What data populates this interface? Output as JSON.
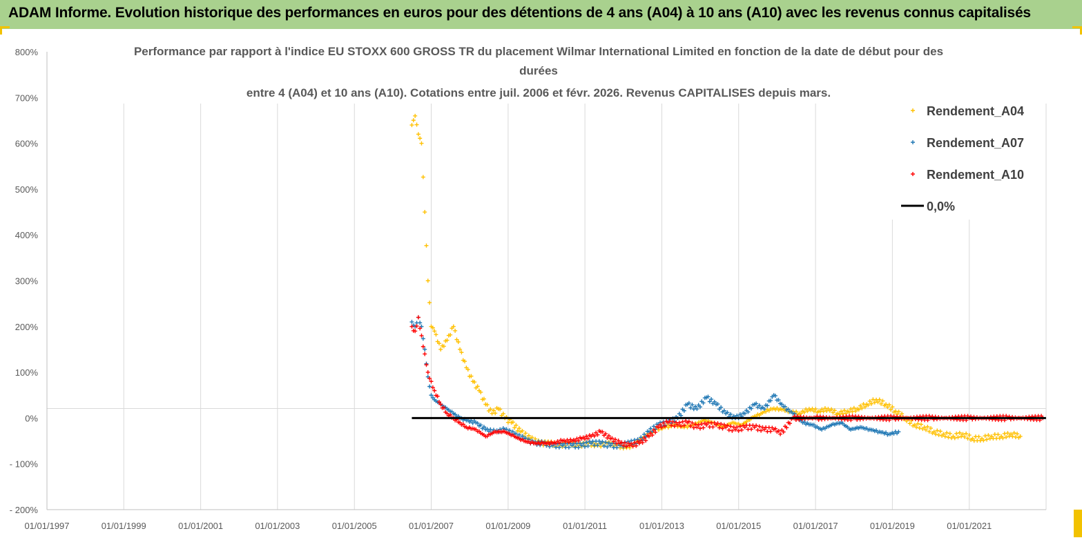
{
  "header": {
    "title": "ADAM Informe. Evolution historique des performances en euros pour des détentions de 4 ans (A04) à 10 ans (A10) avec les revenus connus capitalisés"
  },
  "colors": {
    "banner_bg": "#a9d18e",
    "corner_accent": "#f2c200",
    "series_A04": "#ffc000",
    "series_A07": "#1f77b4",
    "series_A10": "#ff0000",
    "zero_line": "#000000",
    "grid": "#d9d9d9"
  },
  "chart_data": {
    "type": "scatter",
    "title_lines": [
      "Performance par rapport à l'indice EU STOXX 600 GROSS TR  du placement Wilmar International Limited en fonction de la date de début pour des",
      "durées",
      "entre 4 (A04) et 10 ans (A10). Cotations entre juil. 2006 et févr. 2026. Revenus CAPITALISES depuis mars."
    ],
    "xlabel": "",
    "ylabel": "",
    "x_type": "date",
    "xlim": [
      "1997-01-01",
      "2023-01-01"
    ],
    "ylim": [
      -200,
      800
    ],
    "y_unit": "%",
    "grid": "vertical",
    "legend_position": "top-right",
    "x_tick_labels": [
      "01/01/1997",
      "01/01/1999",
      "01/01/2001",
      "01/01/2003",
      "01/01/2005",
      "01/01/2007",
      "01/01/2009",
      "01/01/2011",
      "01/01/2013",
      "01/01/2015",
      "01/01/2017",
      "01/01/2019",
      "01/01/2021"
    ],
    "x_ticks": [
      "1997-01-01",
      "1999-01-01",
      "2001-01-01",
      "2003-01-01",
      "2005-01-01",
      "2007-01-01",
      "2009-01-01",
      "2011-01-01",
      "2013-01-01",
      "2015-01-01",
      "2017-01-01",
      "2019-01-01",
      "2021-01-01"
    ],
    "y_tick_labels": [
      "800%",
      "700%",
      "600%",
      "500%",
      "400%",
      "300%",
      "200%",
      "100%",
      "0%",
      "- 100%",
      "- 200%"
    ],
    "y_ticks": [
      800,
      700,
      600,
      500,
      400,
      300,
      200,
      100,
      0,
      -100,
      -200
    ],
    "series": [
      {
        "name": "Rendement_A04",
        "marker": "+",
        "x": [
          "2006-07-01",
          "2006-08-01",
          "2006-09-01",
          "2006-10-01",
          "2006-11-01",
          "2006-12-01",
          "2007-01-01",
          "2007-02-01",
          "2007-04-01",
          "2007-06-01",
          "2007-08-01",
          "2007-10-01",
          "2007-12-01",
          "2008-02-01",
          "2008-04-01",
          "2008-06-01",
          "2008-08-01",
          "2008-10-01",
          "2008-12-01",
          "2009-02-01",
          "2009-05-01",
          "2009-08-01",
          "2009-11-01",
          "2010-02-01",
          "2010-05-01",
          "2010-08-01",
          "2010-11-01",
          "2011-02-01",
          "2011-05-01",
          "2011-08-01",
          "2011-11-01",
          "2012-02-01",
          "2012-05-01",
          "2012-08-01",
          "2012-11-01",
          "2013-02-01",
          "2013-05-01",
          "2013-08-01",
          "2013-11-01",
          "2014-02-01",
          "2014-05-01",
          "2014-08-01",
          "2014-11-01",
          "2015-02-01",
          "2015-05-01",
          "2015-08-01",
          "2015-11-01",
          "2016-02-01",
          "2016-05-01",
          "2016-08-01",
          "2016-11-01",
          "2017-02-01",
          "2017-05-01",
          "2017-08-01",
          "2017-11-01",
          "2018-02-01",
          "2018-05-01",
          "2018-08-01",
          "2018-11-01",
          "2019-02-01",
          "2019-05-01",
          "2019-08-01",
          "2019-11-01",
          "2020-02-01",
          "2020-05-01",
          "2020-08-01",
          "2020-11-01",
          "2021-02-01",
          "2021-05-01",
          "2021-08-01",
          "2021-11-01",
          "2022-02-01",
          "2022-05-01"
        ],
        "y": [
          640,
          660,
          620,
          600,
          450,
          300,
          200,
          190,
          150,
          170,
          200,
          150,
          110,
          80,
          60,
          30,
          10,
          20,
          0,
          -10,
          -30,
          -45,
          -55,
          -55,
          -60,
          -55,
          -60,
          -55,
          -60,
          -55,
          -60,
          -65,
          -55,
          -40,
          -25,
          -20,
          -15,
          -20,
          -15,
          -5,
          -10,
          -20,
          -10,
          -15,
          0,
          10,
          20,
          20,
          15,
          10,
          20,
          15,
          20,
          10,
          15,
          20,
          30,
          40,
          30,
          15,
          0,
          -15,
          -20,
          -30,
          -35,
          -40,
          -35,
          -45,
          -45,
          -40,
          -40,
          -35,
          -40
        ]
      },
      {
        "name": "Rendement_A07",
        "marker": "+",
        "x": [
          "2006-07-01",
          "2006-08-01",
          "2006-09-01",
          "2006-10-01",
          "2006-11-01",
          "2006-12-01",
          "2007-01-01",
          "2007-02-01",
          "2007-04-01",
          "2007-06-01",
          "2007-08-01",
          "2007-10-01",
          "2007-12-01",
          "2008-03-01",
          "2008-06-01",
          "2008-09-01",
          "2008-12-01",
          "2009-03-01",
          "2009-06-01",
          "2009-09-01",
          "2009-12-01",
          "2010-03-01",
          "2010-06-01",
          "2010-09-01",
          "2010-12-01",
          "2011-03-01",
          "2011-06-01",
          "2011-09-01",
          "2011-12-01",
          "2012-03-01",
          "2012-06-01",
          "2012-09-01",
          "2012-12-01",
          "2013-03-01",
          "2013-06-01",
          "2013-09-01",
          "2013-12-01",
          "2014-03-01",
          "2014-06-01",
          "2014-09-01",
          "2014-12-01",
          "2015-03-01",
          "2015-06-01",
          "2015-09-01",
          "2015-12-01",
          "2016-03-01",
          "2016-06-01",
          "2016-09-01",
          "2016-12-01",
          "2017-03-01",
          "2017-06-01",
          "2017-09-01",
          "2017-12-01",
          "2018-03-01",
          "2018-06-01",
          "2018-09-01",
          "2018-12-01",
          "2019-03-01"
        ],
        "y": [
          210,
          200,
          220,
          200,
          150,
          90,
          50,
          40,
          30,
          20,
          10,
          0,
          -5,
          -10,
          -25,
          -30,
          -25,
          -35,
          -45,
          -55,
          -55,
          -60,
          -60,
          -60,
          -60,
          -55,
          -55,
          -60,
          -60,
          -55,
          -50,
          -30,
          -15,
          -10,
          0,
          30,
          20,
          45,
          30,
          10,
          0,
          10,
          30,
          20,
          50,
          25,
          10,
          -10,
          -15,
          -25,
          -15,
          -10,
          -25,
          -20,
          -25,
          -30,
          -35,
          -30
        ]
      },
      {
        "name": "Rendement_A10",
        "marker": "+",
        "x": [
          "2006-07-01",
          "2006-08-01",
          "2006-09-01",
          "2006-10-01",
          "2006-11-01",
          "2006-12-01",
          "2007-01-01",
          "2007-02-01",
          "2007-04-01",
          "2007-06-01",
          "2007-08-01",
          "2007-10-01",
          "2007-12-01",
          "2008-03-01",
          "2008-06-01",
          "2008-09-01",
          "2008-12-01",
          "2009-03-01",
          "2009-06-01",
          "2009-09-01",
          "2009-12-01",
          "2010-03-01",
          "2010-06-01",
          "2010-09-01",
          "2010-12-01",
          "2011-03-01",
          "2011-06-01",
          "2011-09-01",
          "2011-12-01",
          "2012-03-01",
          "2012-06-01",
          "2012-09-01",
          "2012-12-01",
          "2013-03-01",
          "2013-06-01",
          "2013-09-01",
          "2013-12-01",
          "2014-03-01",
          "2014-06-01",
          "2014-09-01",
          "2014-12-01",
          "2015-03-01",
          "2015-06-01",
          "2015-09-01",
          "2015-12-01",
          "2016-01-01",
          "2016-02-01",
          "2016-06-01",
          "2017-01-01",
          "2018-01-01",
          "2019-01-01",
          "2020-01-01",
          "2021-01-01",
          "2022-01-01",
          "2022-12-01"
        ],
        "y": [
          200,
          190,
          220,
          180,
          140,
          100,
          80,
          60,
          30,
          10,
          0,
          -10,
          -20,
          -25,
          -40,
          -30,
          -30,
          -40,
          -50,
          -55,
          -55,
          -55,
          -50,
          -50,
          -45,
          -40,
          -30,
          -45,
          -55,
          -60,
          -55,
          -40,
          -20,
          -10,
          -15,
          -10,
          -20,
          -15,
          -15,
          -20,
          -25,
          -20,
          -20,
          -25,
          -25,
          -30,
          -35,
          0,
          0,
          0,
          0,
          0,
          0,
          0,
          0
        ]
      },
      {
        "name": "0,0%",
        "marker": "line",
        "x": [
          "2006-07-01",
          "2022-12-31"
        ],
        "y": [
          0,
          0
        ]
      }
    ]
  }
}
